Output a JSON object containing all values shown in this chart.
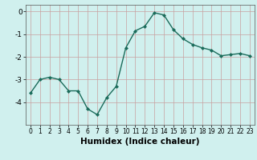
{
  "x": [
    0,
    1,
    2,
    3,
    4,
    5,
    6,
    7,
    8,
    9,
    10,
    11,
    12,
    13,
    14,
    15,
    16,
    17,
    18,
    19,
    20,
    21,
    22,
    23
  ],
  "y": [
    -3.6,
    -3.0,
    -2.9,
    -3.0,
    -3.5,
    -3.5,
    -4.3,
    -4.55,
    -3.8,
    -3.3,
    -1.6,
    -0.85,
    -0.65,
    -0.05,
    -0.15,
    -0.8,
    -1.2,
    -1.45,
    -1.6,
    -1.7,
    -1.95,
    -1.9,
    -1.85,
    -1.95
  ],
  "line_color": "#1a6b5a",
  "marker": "D",
  "marker_size": 2.0,
  "linewidth": 1.0,
  "xlabel": "Humidex (Indice chaleur)",
  "xlabel_fontsize": 7.5,
  "xlim": [
    -0.5,
    23.5
  ],
  "ylim": [
    -5.0,
    0.3
  ],
  "yticks": [
    0,
    -1,
    -2,
    -3,
    -4
  ],
  "xticks": [
    0,
    1,
    2,
    3,
    4,
    5,
    6,
    7,
    8,
    9,
    10,
    11,
    12,
    13,
    14,
    15,
    16,
    17,
    18,
    19,
    20,
    21,
    22,
    23
  ],
  "grid_color": "#c8a0a0",
  "bg_color": "#d0f0ee",
  "fig_bg": "#d0f0ee",
  "tick_fontsize": 5.5,
  "ytick_fontsize": 6.5
}
